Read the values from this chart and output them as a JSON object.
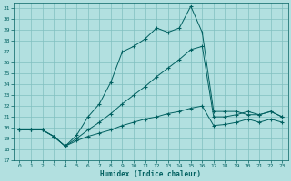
{
  "xlabel": "Humidex (Indice chaleur)",
  "bg_color": "#b2e0e0",
  "grid_color": "#80c0c0",
  "line_color": "#006060",
  "xlim": [
    -0.5,
    23.5
  ],
  "ylim": [
    17,
    31.5
  ],
  "x_ticks": [
    0,
    1,
    2,
    3,
    4,
    5,
    6,
    7,
    8,
    9,
    10,
    11,
    12,
    13,
    14,
    15,
    16,
    17,
    18,
    19,
    20,
    21,
    22,
    23
  ],
  "y_ticks": [
    17,
    18,
    19,
    20,
    21,
    22,
    23,
    24,
    25,
    26,
    27,
    28,
    29,
    30,
    31
  ],
  "line1_x": [
    0,
    1,
    2,
    3,
    4,
    5,
    6,
    7,
    8,
    9,
    10,
    11,
    12,
    13,
    14,
    15,
    16,
    17,
    18,
    19,
    20,
    21,
    22,
    23
  ],
  "line1_y": [
    19.8,
    19.8,
    19.8,
    19.2,
    18.3,
    19.3,
    21.0,
    22.2,
    24.2,
    27.0,
    27.5,
    28.2,
    29.2,
    28.8,
    29.2,
    31.2,
    28.8,
    21.5,
    21.5,
    21.5,
    21.2,
    21.2,
    21.5,
    21.0
  ],
  "line2_x": [
    0,
    1,
    2,
    3,
    4,
    5,
    6,
    7,
    8,
    9,
    10,
    11,
    12,
    13,
    14,
    15,
    16,
    17,
    18,
    19,
    20,
    21,
    22,
    23
  ],
  "line2_y": [
    19.8,
    19.8,
    19.8,
    19.2,
    18.3,
    19.0,
    19.8,
    20.5,
    21.3,
    22.2,
    23.0,
    23.8,
    24.7,
    25.5,
    26.3,
    27.2,
    27.5,
    21.0,
    21.0,
    21.2,
    21.5,
    21.2,
    21.5,
    21.0
  ],
  "line3_x": [
    0,
    1,
    2,
    3,
    4,
    5,
    6,
    7,
    8,
    9,
    10,
    11,
    12,
    13,
    14,
    15,
    16,
    17,
    18,
    19,
    20,
    21,
    22,
    23
  ],
  "line3_y": [
    19.8,
    19.8,
    19.8,
    19.2,
    18.3,
    18.8,
    19.2,
    19.5,
    19.8,
    20.2,
    20.5,
    20.8,
    21.0,
    21.3,
    21.5,
    21.8,
    22.0,
    20.2,
    20.3,
    20.5,
    20.8,
    20.5,
    20.8,
    20.5
  ]
}
